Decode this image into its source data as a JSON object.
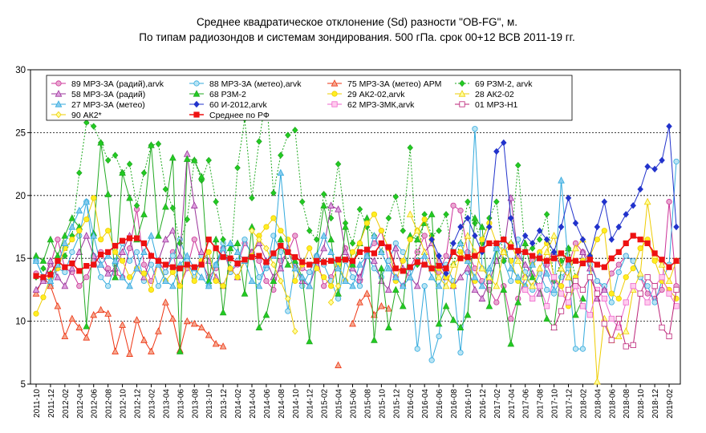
{
  "chart_data": {
    "type": "line",
    "title": "Среднее квадратическое отклонение (Sd) разности \"OB-FG\", м.",
    "subtitle": "По типам радиозондов и системам зондирования. 500 гПа. срок 00+12 ВСВ 2011-19 гг.",
    "ylim": [
      5,
      30
    ],
    "yticks": [
      5,
      10,
      15,
      20,
      25,
      30
    ],
    "grid_y": [
      10,
      15,
      20,
      25
    ],
    "legend_position": "top-left",
    "x_tick_labels": [
      "2011-10",
      "2011-12",
      "2012-02",
      "2012-04",
      "2012-06",
      "2012-08",
      "2012-10",
      "2012-12",
      "2013-02",
      "2013-04",
      "2013-06",
      "2013-08",
      "2013-10",
      "2013-12",
      "2014-02",
      "2014-04",
      "2014-06",
      "2014-08",
      "2014-10",
      "2014-12",
      "2015-02",
      "2015-04",
      "2015-06",
      "2015-08",
      "2015-10",
      "2015-12",
      "2016-02",
      "2016-04",
      "2016-06",
      "2016-08",
      "2016-10",
      "2016-12",
      "2017-02",
      "2017-04",
      "2017-06",
      "2017-08",
      "2017-10",
      "2017-12",
      "2018-02",
      "2018-04",
      "2018-06",
      "2018-08",
      "2018-10",
      "2018-12",
      "2019-02"
    ],
    "series": [
      {
        "name": "89 МРЗ-3А (радий),arvk",
        "color": "#cc3399",
        "marker": "circle",
        "fill": "#e8a8d0",
        "start": 0,
        "values": [
          13.8,
          13.2,
          14.5,
          16.5,
          14.2,
          13.9,
          12.8,
          13.5,
          14.8,
          15.5,
          14.2,
          13.8,
          13.5,
          15.8,
          18.9,
          14.5,
          13.2,
          14.8,
          13.9,
          15.5,
          12.8,
          14.2,
          16.5,
          14.8,
          13.5,
          14.2,
          15.8,
          13.9,
          14.5,
          16.2,
          15.5,
          14.8,
          13.2,
          12.5,
          14.8,
          15.5,
          16.8,
          14.2,
          13.9,
          15.2,
          12.8,
          13.5,
          14.8,
          15.8,
          14.5,
          13.2,
          15.5,
          16.2,
          17.2,
          14.8,
          13.5,
          12.8,
          14.2,
          15.5,
          16.8,
          14.2,
          13.9,
          15.2,
          19.2,
          18.8,
          15.5,
          14.2,
          13.2,
          12.5,
          11.5,
          12.8,
          10.2,
          11.8,
          13.5,
          14.8,
          15.2,
          14.5,
          13.2,
          12.8,
          14.5,
          16.2,
          15.5,
          14.8,
          13.2,
          12.5,
          13.8,
          14.5,
          15.2,
          14.8,
          13.5,
          12.2,
          11.8,
          12.5,
          19.5,
          12.8,
          11.8,
          12.5,
          13.5,
          14.2,
          15.8,
          16.8,
          14.5,
          13.2,
          12.5,
          13.8,
          15.2,
          16.5,
          15.8,
          14.2,
          13.5,
          15.8,
          16.5,
          15.2,
          14.8,
          13.2,
          14.5,
          17.2
        ]
      },
      {
        "name": "88 МРЗ-3А (метео),arvk",
        "color": "#33aadd",
        "marker": "circle",
        "fill": "#b8e4f4",
        "start": 0,
        "values": [
          14.8,
          13.5,
          12.8,
          14.2,
          13.9,
          15.5,
          16.8,
          19.5,
          15.2,
          13.5,
          12.8,
          14.5,
          16.2,
          14.8,
          15.5,
          13.2,
          14.5,
          12.8,
          13.9,
          15.2,
          16.5,
          14.8,
          13.5,
          15.2,
          12.8,
          14.5,
          16.2,
          13.9,
          14.8,
          16.5,
          15.2,
          13.5,
          14.2,
          16.8,
          15.5,
          10.8,
          14.5,
          12.8,
          13.9,
          15.2,
          14.5,
          13.2,
          11.8,
          14.8,
          13.5,
          12.8,
          15.2,
          14.2,
          13.5,
          14.8,
          16.2,
          15.5,
          14.2,
          7.8,
          12.8,
          6.9,
          8.8,
          14.5,
          13.2,
          7.5,
          13.9,
          25.3,
          14.2,
          13.5,
          15.8,
          14.8,
          13.2,
          16.5,
          13.9,
          12.5,
          13.8,
          12.5,
          12.2,
          13.5,
          14.2,
          7.8,
          7.8,
          14.5,
          13.2,
          12.8,
          11.5,
          13.9,
          15.2,
          14.8,
          13.5,
          12.8,
          11.5,
          13.2,
          14.5,
          22.7,
          13.2,
          15.5,
          14.2,
          12.8,
          13.5,
          14.8
        ]
      },
      {
        "name": "75 МРЗ-3А (метео) АРМ",
        "color": "#ee3311",
        "marker": "triangle",
        "fill": "#f4a890",
        "start": 0,
        "values": [
          12.2,
          13.5,
          12.8,
          11.2,
          8.8,
          10.2,
          9.5,
          8.7,
          10.5,
          10.9,
          10.6,
          7.6,
          9.7,
          7.4,
          10.1,
          8.5,
          7.6,
          9.2,
          11.5,
          10.2,
          7.7,
          10.0,
          9.8,
          9.5,
          8.9,
          8.2,
          8.0,
          null,
          null,
          null,
          null,
          null,
          null,
          null,
          null,
          null,
          null,
          null,
          null,
          null,
          null,
          null,
          6.5,
          null,
          9.8,
          11.5,
          12.2,
          10.5,
          11.2,
          11.0
        ]
      },
      {
        "name": "69 РЗМ-2, arvk",
        "color": "#22aa22",
        "marker": "diamond",
        "fill": "#22cc22",
        "dashed": true,
        "start": 0,
        "values": [
          13.5,
          14.2,
          13.8,
          14.5,
          15.2,
          16.8,
          21.8,
          25.8,
          25.5,
          24.2,
          22.8,
          23.2,
          21.8,
          22.5,
          19.2,
          21.8,
          24.0,
          24.1,
          20.5,
          19.0,
          16.2,
          18.1,
          22.8,
          21.2,
          22.8,
          19.5,
          16.5,
          14.2,
          22.2,
          26.1,
          19.8,
          24.3,
          28.0,
          20.2,
          23.2,
          24.8,
          25.2,
          19.5,
          17.2,
          16.5,
          20.1,
          18.2,
          22.5,
          17.8,
          16.2,
          18.9,
          17.5,
          16.8,
          15.5,
          18.2,
          19.9,
          17.2,
          23.8,
          14.5,
          18.5,
          16.8,
          17.2,
          18.5,
          14.5,
          16.2,
          19.5,
          17.8,
          16.2,
          18.2,
          19.5,
          14.8,
          16.2,
          22.4,
          15.5,
          15.8,
          16.5,
          18.5,
          13.2,
          14.8,
          15.8,
          13.5,
          14.8
        ]
      },
      {
        "name": "58 МРЗ-3А (радий)",
        "color": "#993399",
        "marker": "triangle",
        "fill": "#e0a0e0",
        "start": 0,
        "values": [
          12.5,
          13.2,
          14.8,
          13.5,
          12.8,
          14.2,
          15.5,
          16.8,
          15.2,
          14.5,
          13.8,
          14.2,
          15.5,
          16.8,
          14.2,
          13.5,
          15.2,
          14.8,
          16.5,
          17.2,
          15.2,
          23.3,
          19.2,
          15.5,
          14.8,
          13.5,
          12.8,
          14.2,
          13.5,
          14.8,
          15.5,
          16.2,
          14.8,
          13.5,
          14.2,
          15.8,
          14.5,
          13.2,
          12.8,
          14.5,
          15.8,
          19.2,
          18.9,
          15.5,
          14.2,
          13.5,
          15.2,
          14.8,
          13.2,
          12.5,
          15.8,
          14.2,
          13.5,
          12.8,
          15.5,
          16.2,
          14.8,
          13.5,
          12.8,
          13.5,
          14.2,
          12.5,
          11.8,
          13.2,
          14.8,
          15.5,
          19.8,
          15.2,
          14.5,
          13.8,
          12.2,
          14.8,
          15.5,
          14.2,
          13.5,
          12.8,
          15.5,
          14.2,
          11.8,
          12.5
        ]
      },
      {
        "name": "68 РЗМ-2",
        "color": "#22aa22",
        "marker": "triangle",
        "fill": "#22cc22",
        "start": 0,
        "values": [
          15.2,
          14.8,
          16.5,
          15.2,
          16.8,
          18.2,
          17.5,
          9.6,
          17.0,
          24.2,
          20.1,
          13.5,
          21.8,
          19.8,
          16.5,
          18.5,
          24.0,
          16.8,
          19.1,
          23.0,
          7.6,
          22.9,
          22.8,
          21.5,
          13.2,
          16.5,
          10.7,
          15.8,
          16.2,
          12.2,
          17.5,
          9.5,
          10.5,
          13.2,
          16.5,
          14.5,
          14.8,
          13.5,
          8.4,
          15.2,
          19.2,
          16.5,
          12.2,
          17.5,
          14.5,
          16.2,
          18.2,
          8.5,
          14.2,
          9.5,
          12.5,
          11.2,
          16.8,
          16.5,
          17.8,
          18.5,
          9.8,
          11.2,
          10.1,
          9.5,
          10.5,
          18.2,
          17.5,
          11.2,
          15.8,
          12.5,
          8.2,
          11.5,
          16.2,
          13.5,
          12.8,
          10.2,
          9.5,
          14.2,
          15.8,
          10.5,
          11.8
        ]
      },
      {
        "name": "29 АК2-02,arvk",
        "color": "#eecc00",
        "marker": "circle",
        "fill": "#ffee22",
        "start": 0,
        "values": [
          10.6,
          11.9,
          13.5,
          14.2,
          15.8,
          16.5,
          17.2,
          18.1,
          19.8,
          16.5,
          17.2,
          15.5,
          14.8,
          13.5,
          14.2,
          13.8,
          12.5,
          14.8,
          13.2,
          13.9,
          12.8,
          14.5,
          13.2,
          14.8,
          15.5,
          13.2,
          12.8,
          14.2,
          13.5,
          14.8,
          15.2,
          16.8,
          17.5,
          18.2,
          17.2,
          16.5,
          13.2,
          14.5,
          15.8,
          14.2,
          13.5,
          12.8,
          14.5,
          13.2,
          15.5,
          16.2,
          17.8,
          18.5,
          17.2,
          15.8,
          13.2,
          14.8,
          16.5,
          17.2,
          18.1,
          16.5,
          14.2,
          13.5,
          12.8,
          15.5,
          14.8,
          13.2,
          16.5,
          17.8,
          16.2,
          15.5,
          14.8,
          13.2,
          12.8,
          14.5,
          15.5,
          16.2,
          13.5,
          12.8,
          11.2,
          13.5,
          14.8,
          15.2,
          16.5,
          17.2,
          12.2,
          11.8,
          13.5,
          14.2,
          15.8,
          16.5,
          14.8,
          13.2,
          12.5,
          11.8,
          13.2,
          14.5,
          15.8,
          16.5,
          14.2,
          12.8,
          11.5,
          10.5,
          15.2,
          16.8,
          22.9
        ]
      },
      {
        "name": "28 АК2-02",
        "color": "#eecc00",
        "marker": "triangle",
        "fill": "#ffff99",
        "start": 52,
        "values": [
          18.5,
          17.2,
          15.5,
          14.2,
          13.5,
          12.8,
          14.5,
          15.2,
          16.8,
          15.5,
          14.2,
          13.5,
          12.8,
          15.5,
          16.2,
          14.8,
          13.5,
          12.8,
          14.2,
          15.5,
          16.8,
          14.2,
          13.5,
          15.8,
          16.5,
          15.2,
          5.2,
          10.2,
          8.5,
          8.8,
          9.2,
          12.5,
          13.8,
          19.5,
          15.2,
          14.5,
          13.2,
          14.8,
          16.2,
          15.5,
          14.2,
          13.5,
          12.8,
          14.5,
          15.8,
          16.5,
          17.2,
          15.8,
          14.5,
          12.2
        ]
      },
      {
        "name": "27 МРЗ-3А (метео)",
        "color": "#33aadd",
        "marker": "triangle",
        "fill": "#88ccee",
        "start": 0,
        "values": [
          14.8,
          13.5,
          13.2,
          14.5,
          16.2,
          17.5,
          18.8,
          19.5,
          16.8,
          14.5,
          15.2,
          14.8,
          13.5,
          12.8,
          14.2,
          15.5,
          16.8,
          14.5,
          13.2,
          12.8,
          14.5,
          15.2,
          14.2,
          13.5,
          12.8,
          14.5,
          15.8,
          16.2,
          15.5,
          14.8,
          13.2,
          12.8,
          14.5,
          15.2,
          21.8,
          15.5,
          14.2,
          13.5,
          12.8,
          15.2,
          16.8,
          15.5,
          14.2,
          13.2,
          12.8,
          14.5,
          15.2,
          16.8,
          15.5,
          14.2,
          13.5,
          12.8,
          13.5,
          14.8,
          15.2,
          13.5,
          12.8,
          14.2,
          15.5,
          16.2,
          14.8,
          13.5,
          12.8,
          14.2,
          15.8,
          16.5,
          14.2,
          13.5,
          12.8,
          14.5,
          15.2,
          13.8,
          12.5,
          21.2,
          14.5
        ]
      },
      {
        "name": "60 И-2012,arvk",
        "color": "#2233cc",
        "marker": "diamond",
        "fill": "#2233cc",
        "start": 55,
        "values": [
          16.5,
          15.2,
          13.8,
          16.2,
          17.5,
          18.2,
          16.8,
          15.5,
          17.5,
          23.5,
          24.2,
          18.2,
          15.5,
          16.8,
          16.2,
          17.2,
          16.5,
          15.5,
          17.5,
          19.8,
          17.8,
          16.5,
          15.2,
          17.5,
          19.5,
          16.5,
          17.5,
          18.5,
          19.2,
          20.5,
          22.3,
          22.1,
          22.8,
          25.5,
          17.5,
          16.2,
          18.5,
          19.2,
          19.5,
          18.2,
          17.5,
          20.2,
          21.2,
          22.8,
          23.2,
          20.2,
          22.3,
          21.5,
          20.2,
          22.5,
          18.5,
          19.5,
          20.2,
          18.5,
          21.8,
          19.5,
          16.8,
          15.5,
          16.5,
          17.2,
          16.8,
          17.5,
          19.2,
          16.2,
          17.5,
          13.2
        ]
      },
      {
        "name": "62 МРЗ-3МК,arvk",
        "color": "#ee66cc",
        "marker": "square",
        "fill": "#ffccee",
        "start": 68,
        "values": [
          12.5,
          11.8,
          12.8,
          11.2,
          13.5,
          12.2,
          11.5,
          12.8,
          11.2,
          10.5,
          12.5,
          11.8,
          10.2,
          9.5,
          11.5,
          12.8,
          12.2,
          11.5,
          12.8,
          13.5,
          12.2,
          11.2,
          26.3,
          12.5,
          11.8,
          13.2
        ]
      },
      {
        "name": "01 МРЗ-Н1",
        "color": "#bb2277",
        "marker": "square",
        "fill": "#ffffff",
        "start": 72,
        "values": [
          9.5,
          10.8,
          12.5,
          13.2,
          12.5,
          13.5,
          12.2,
          9.8,
          8.5,
          10.2,
          8.0,
          8.1,
          12.2,
          13.5,
          12.8,
          9.5,
          8.8,
          12.5,
          13.2,
          9.5,
          10.8,
          12.5,
          13.2,
          12.8,
          11.5,
          9.8,
          9.2,
          9.4
        ]
      },
      {
        "name": "90 АК2*",
        "color": "#eecc00",
        "marker": "diamond",
        "fill": "#ffff99",
        "start": 30,
        "values": [
          17.2,
          16.5,
          15.8,
          14.5,
          13.2,
          11.8,
          9.2,
          null,
          null,
          null,
          null,
          11.5,
          12.8
        ]
      },
      {
        "name": "Среднее по РФ",
        "color": "#ee1111",
        "marker": "square",
        "fill": "#ee1111",
        "width": 1.6,
        "start": 0,
        "values": [
          13.6,
          13.5,
          13.7,
          14.8,
          14.3,
          14.6,
          14.0,
          14.4,
          14.5,
          15.3,
          15.5,
          16.0,
          16.4,
          16.6,
          16.6,
          16.2,
          15.2,
          14.8,
          14.5,
          14.3,
          14.2,
          14.5,
          14.3,
          14.5,
          16.5,
          15.8,
          15.1,
          15.0,
          14.6,
          14.9,
          15.1,
          15.2,
          14.7,
          15.4,
          16.0,
          15.5,
          15.1,
          14.7,
          14.5,
          14.8,
          14.7,
          14.8,
          14.9,
          14.9,
          14.8,
          15.5,
          15.7,
          15.4,
          16.2,
          15.9,
          14.2,
          14.0,
          14.3,
          14.7,
          14.5,
          14.2,
          14.4,
          14.2,
          15.5,
          15.0,
          15.1,
          15.2,
          15.7,
          16.2,
          16.2,
          16.5,
          15.9,
          15.6,
          15.5,
          15.2,
          15.0,
          14.8,
          15.0,
          15.4,
          14.9,
          14.8,
          14.6,
          14.9,
          14.5,
          14.3,
          15.0,
          15.5,
          16.2,
          16.8,
          16.5,
          16.2,
          15.4,
          14.9,
          14.3,
          14.8,
          14.5,
          14.6,
          15.3,
          15.6,
          15.0,
          15.5,
          15.0,
          14.9,
          15.4,
          15.5,
          16.0,
          16.3,
          15.6,
          15.4,
          15.5,
          15.9,
          16.0,
          15.5,
          15.7,
          15.1,
          14.9,
          15.2,
          14.8,
          14.6,
          14.8,
          14.9,
          15.2,
          14.5,
          15.3,
          14.9,
          15.3,
          15.2,
          15.1,
          14.9,
          15.0,
          14.3,
          14.6,
          14.8,
          14.4,
          14.7,
          15.1,
          15.0,
          15.4,
          14.8,
          14.9,
          14.5,
          14.6,
          14.3,
          14.7,
          14.9,
          15.0,
          15.4,
          14.5,
          14.6,
          15.1,
          14.8
        ]
      }
    ]
  }
}
